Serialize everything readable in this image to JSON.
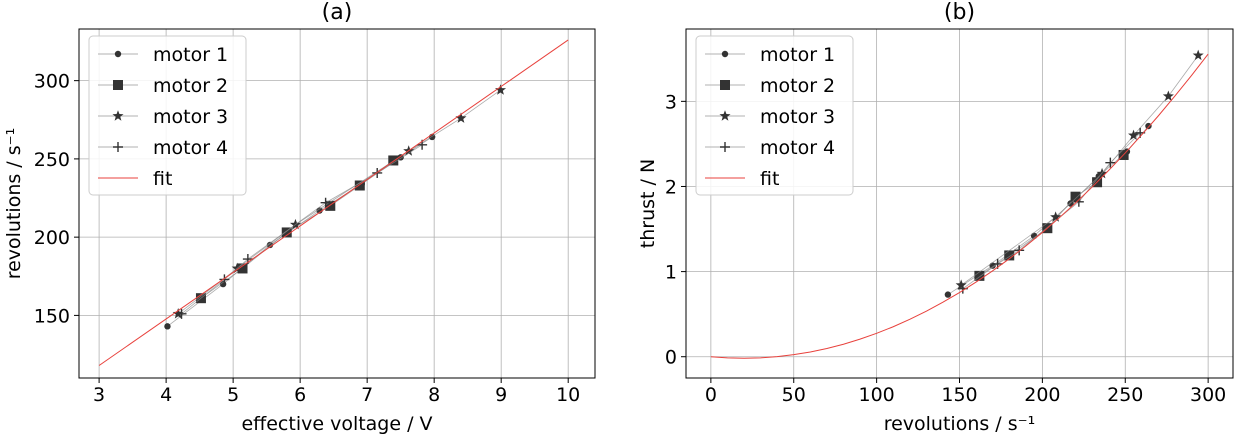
{
  "chart_data": [
    {
      "type": "line",
      "title": "(a)",
      "xlabel": "effective voltage / V",
      "ylabel": "revolutions / s⁻¹",
      "xlim": [
        2.7,
        10.4
      ],
      "ylim": [
        110,
        333
      ],
      "xticks": [
        3,
        4,
        5,
        6,
        7,
        8,
        9,
        10
      ],
      "yticks": [
        150,
        200,
        250,
        300
      ],
      "grid": true,
      "legend_position": "top-left",
      "series": [
        {
          "name": "motor 1",
          "marker": "circle",
          "color": "#333333",
          "x": [
            4.02,
            4.85,
            5.55,
            6.29,
            6.92,
            7.5,
            7.97
          ],
          "y": [
            143,
            170,
            195,
            217,
            234,
            251,
            264
          ]
        },
        {
          "name": "motor 2",
          "marker": "square",
          "color": "#333333",
          "x": [
            4.52,
            5.14,
            5.8,
            6.45,
            6.89,
            7.39
          ],
          "y": [
            161,
            180,
            203,
            220,
            233,
            249
          ]
        },
        {
          "name": "motor 3",
          "marker": "star",
          "color": "#333333",
          "x": [
            4.18,
            5.06,
            5.93,
            7.62,
            8.4,
            8.99
          ],
          "y": [
            151,
            180,
            208,
            255,
            276,
            294
          ]
        },
        {
          "name": "motor 4",
          "marker": "plus",
          "color": "#333333",
          "x": [
            4.23,
            4.87,
            5.22,
            6.38,
            7.15,
            7.82
          ],
          "y": [
            151,
            173,
            186,
            222,
            241,
            259
          ]
        },
        {
          "name": "fit",
          "type": "line",
          "color": "#e8413c",
          "x": [
            3,
            10
          ],
          "y": [
            118,
            326
          ]
        }
      ]
    },
    {
      "type": "line",
      "title": "(b)",
      "xlabel": "revolutions / s⁻¹",
      "ylabel": "thrust / N",
      "xlim": [
        -15,
        315
      ],
      "ylim": [
        -0.25,
        3.85
      ],
      "xticks": [
        0,
        50,
        100,
        150,
        200,
        250,
        300
      ],
      "yticks": [
        0,
        1,
        2,
        3
      ],
      "grid": true,
      "legend_position": "top-left",
      "series": [
        {
          "name": "motor 1",
          "marker": "circle",
          "color": "#333333",
          "x": [
            143,
            170,
            195,
            217,
            234,
            251,
            264
          ],
          "y": [
            0.73,
            1.07,
            1.42,
            1.8,
            2.12,
            2.41,
            2.71
          ]
        },
        {
          "name": "motor 2",
          "marker": "square",
          "color": "#333333",
          "x": [
            162,
            180,
            203,
            220,
            233,
            249
          ],
          "y": [
            0.95,
            1.19,
            1.51,
            1.88,
            2.05,
            2.37
          ]
        },
        {
          "name": "motor 3",
          "marker": "star",
          "color": "#333333",
          "x": [
            151,
            208,
            236,
            255,
            276,
            294
          ],
          "y": [
            0.84,
            1.64,
            2.15,
            2.6,
            3.06,
            3.54
          ]
        },
        {
          "name": "motor 4",
          "marker": "plus",
          "color": "#333333",
          "x": [
            152,
            173,
            186,
            222,
            241,
            259
          ],
          "y": [
            0.8,
            1.09,
            1.25,
            1.82,
            2.28,
            2.63
          ]
        },
        {
          "name": "fit",
          "type": "line",
          "color": "#e8413c",
          "coefficients": {
            "a": 4.55e-05,
            "b": -0.0018,
            "c": 0
          },
          "x": [
            0,
            10,
            20,
            30,
            40,
            50,
            60,
            70,
            80,
            90,
            100,
            110,
            120,
            130,
            140,
            150,
            160,
            170,
            180,
            190,
            200,
            210,
            220,
            230,
            240,
            250,
            260,
            270,
            280,
            290,
            300
          ],
          "y": [
            0,
            -0.013,
            -0.018,
            -0.013,
            0.001,
            0.024,
            0.056,
            0.097,
            0.147,
            0.207,
            0.275,
            0.352,
            0.439,
            0.535,
            0.64,
            0.754,
            0.877,
            1.009,
            1.15,
            1.301,
            1.46,
            1.629,
            1.806,
            1.993,
            2.189,
            2.394,
            2.608,
            2.831,
            3.063,
            3.305,
            3.555
          ]
        }
      ]
    }
  ]
}
